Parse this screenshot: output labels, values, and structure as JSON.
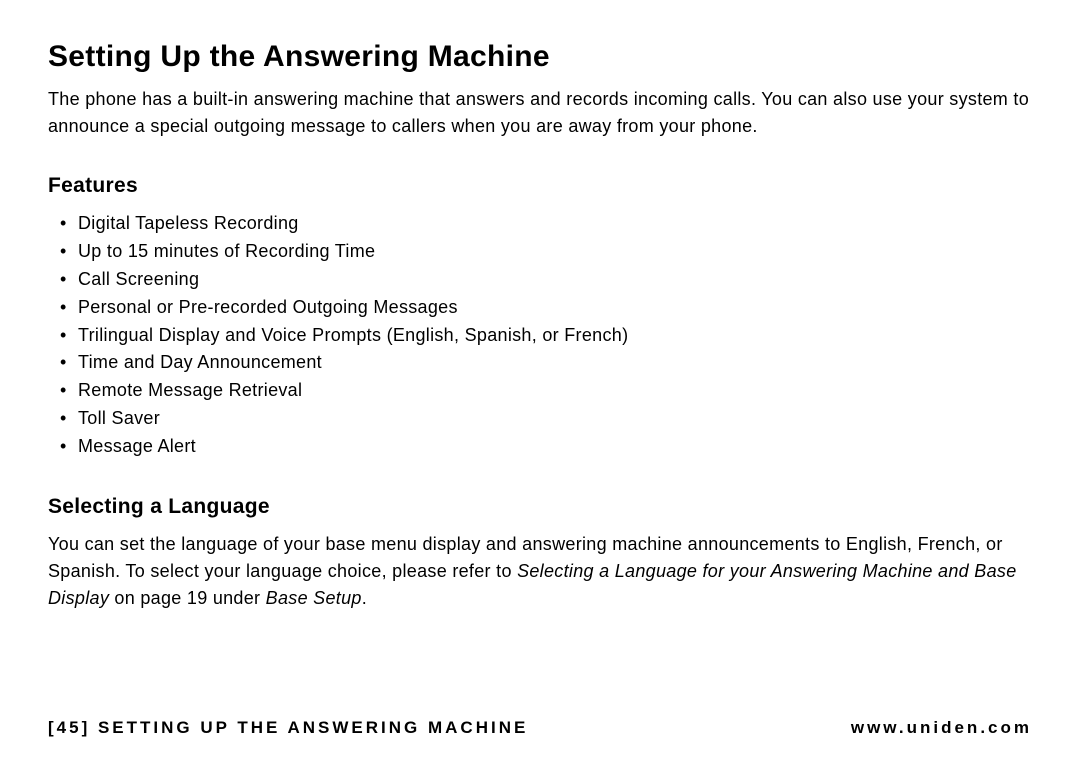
{
  "title": "Setting Up the Answering Machine",
  "intro": "The phone has a built-in answering machine that answers and records incoming calls.\nYou can also use your system to announce a special outgoing message to callers when you are away from your phone.",
  "features": {
    "heading": "Features",
    "items": [
      "Digital Tapeless Recording",
      "Up to 15 minutes of Recording Time",
      "Call Screening",
      "Personal or Pre-recorded Outgoing Messages",
      "Trilingual Display and Voice Prompts (English, Spanish, or French)",
      "Time and Day Announcement",
      "Remote Message Retrieval",
      "Toll Saver",
      "Message Alert"
    ]
  },
  "language": {
    "heading": "Selecting a Language",
    "body_pre": "You can set the language of your base menu display and answering machine announcements to English, French, or Spanish. To select your language choice, please refer to ",
    "body_italic1": "Selecting a Language for your Answering Machine and Base Display",
    "body_mid": " on page 19 under ",
    "body_italic2": "Base Setup",
    "body_end": "."
  },
  "footer": {
    "page_number": "[45]",
    "section": "SETTING UP THE ANSWERING MACHINE",
    "url": "www.uniden.com"
  }
}
